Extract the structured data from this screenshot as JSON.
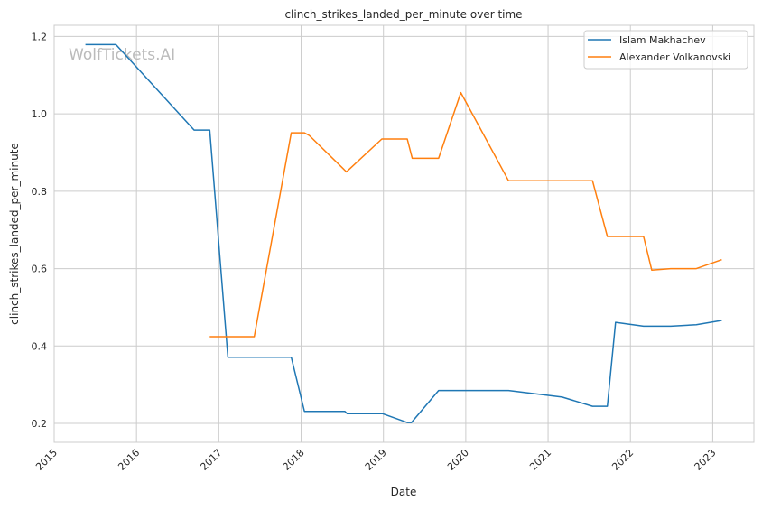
{
  "chart_data": {
    "type": "line",
    "title": "clinch_strikes_landed_per_minute over time",
    "xlabel": "Date",
    "ylabel": "clinch_strikes_landed_per_minute",
    "xlim": [
      2015.0,
      2023.5
    ],
    "ylim": [
      0.151,
      1.229
    ],
    "xticks": [
      2015,
      2016,
      2017,
      2018,
      2019,
      2020,
      2021,
      2022,
      2023
    ],
    "xtick_labels": [
      "2015",
      "2016",
      "2017",
      "2018",
      "2019",
      "2020",
      "2021",
      "2022",
      "2023"
    ],
    "yticks": [
      0.2,
      0.4,
      0.6,
      0.8,
      1.0,
      1.2
    ],
    "ytick_labels": [
      "0.2",
      "0.4",
      "0.6",
      "0.8",
      "1.0",
      "1.2"
    ],
    "grid": true,
    "legend_position": "top-right",
    "watermark": "WolfTickets.AI",
    "series": [
      {
        "name": "Islam Makhachev",
        "color": "#1f77b4",
        "x": [
          2015.38,
          2015.75,
          2016.7,
          2016.89,
          2017.11,
          2017.88,
          2018.04,
          2018.53,
          2018.56,
          2018.99,
          2019.29,
          2019.34,
          2019.67,
          2020.52,
          2021.17,
          2021.54,
          2021.72,
          2021.82,
          2022.16,
          2022.49,
          2022.8,
          2023.11
        ],
        "y": [
          1.179,
          1.179,
          0.958,
          0.958,
          0.371,
          0.371,
          0.231,
          0.231,
          0.225,
          0.225,
          0.202,
          0.202,
          0.285,
          0.285,
          0.268,
          0.244,
          0.244,
          0.461,
          0.451,
          0.451,
          0.455,
          0.466
        ]
      },
      {
        "name": "Alexander Volkanovski",
        "color": "#ff7f0e",
        "x": [
          2016.89,
          2017.43,
          2017.88,
          2018.04,
          2018.1,
          2018.55,
          2018.98,
          2019.29,
          2019.35,
          2019.67,
          2019.94,
          2020.52,
          2021.54,
          2021.72,
          2022.16,
          2022.26,
          2022.49,
          2022.8,
          2023.11
        ],
        "y": [
          0.424,
          0.424,
          0.951,
          0.951,
          0.944,
          0.85,
          0.935,
          0.935,
          0.885,
          0.885,
          1.055,
          0.827,
          0.827,
          0.683,
          0.683,
          0.596,
          0.6,
          0.6,
          0.623
        ]
      }
    ]
  }
}
